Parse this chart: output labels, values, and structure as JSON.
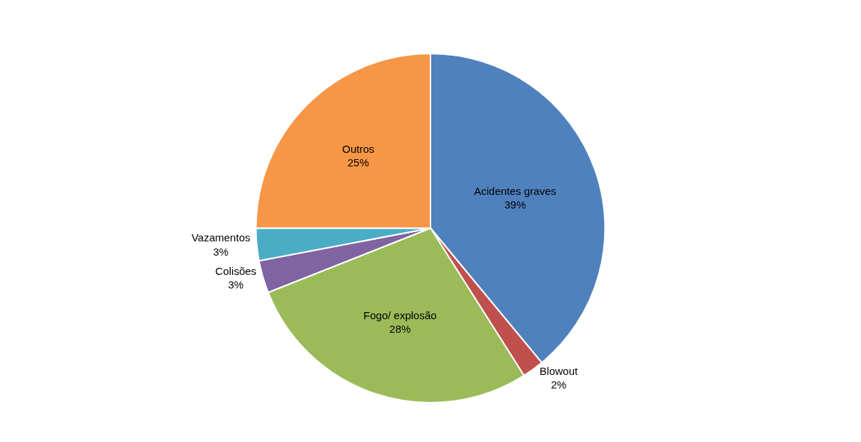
{
  "chart_data": {
    "type": "pie",
    "categories": [
      "Acidentes graves",
      "Blowout",
      "Fogo/ explosão",
      "Colisões",
      "Vazamentos",
      "Outros"
    ],
    "values": [
      39,
      2,
      28,
      3,
      3,
      25
    ],
    "colors": [
      "#4f81bd",
      "#c0504d",
      "#9bbb59",
      "#8064a2",
      "#4bacc6",
      "#f79646"
    ],
    "value_labels": [
      "39%",
      "2%",
      "28%",
      "3%",
      "3%",
      "25%"
    ],
    "legend": false
  }
}
